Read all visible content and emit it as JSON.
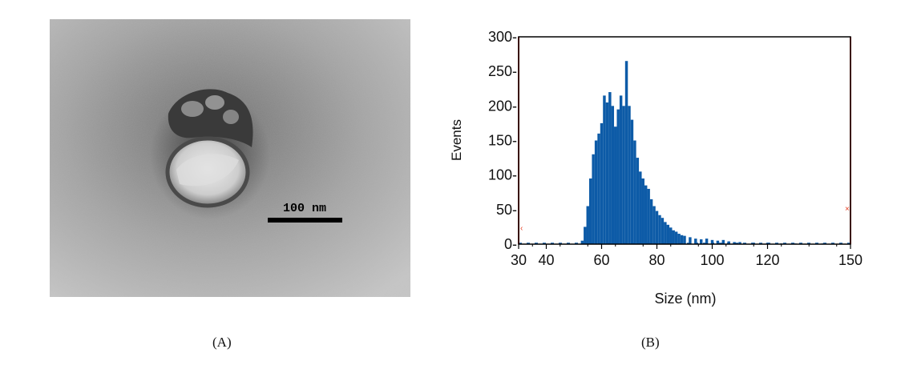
{
  "panel_a": {
    "scale_bar_label": "100 nm",
    "caption": "(A)"
  },
  "panel_b": {
    "caption": "(B)"
  },
  "colors": {
    "bars": "#0d5ba7",
    "gate_lines": "#e53b1e",
    "axes": "#000000"
  },
  "chart_data": {
    "type": "bar",
    "title": "",
    "xlabel": "Size (nm)",
    "ylabel": "Events",
    "xlim": [
      30,
      150
    ],
    "ylim": [
      0,
      300
    ],
    "x_ticks": [
      30,
      40,
      60,
      80,
      100,
      120,
      150
    ],
    "y_ticks": [
      0,
      50,
      100,
      150,
      200,
      250,
      300
    ],
    "x_tick_labels": [
      "30",
      "40",
      "60",
      "80",
      "100",
      "120",
      "150"
    ],
    "y_tick_labels": [
      "0-",
      "50-",
      "100-",
      "150-",
      "200-",
      "250-",
      "300-"
    ],
    "grid": false,
    "gate_markers": [
      30,
      150
    ],
    "series": [
      {
        "x": [
          53,
          54,
          55,
          56,
          57,
          58,
          59,
          60,
          61,
          62,
          63,
          64,
          65,
          66,
          67,
          68,
          69,
          70,
          71,
          72,
          73,
          74,
          75,
          76,
          77,
          78,
          79,
          80,
          81,
          82,
          83,
          84,
          85,
          86,
          87,
          88,
          89,
          90,
          92,
          94,
          96,
          98,
          100,
          102,
          104,
          106,
          108,
          110,
          115,
          120,
          125,
          130,
          140
        ],
        "values": [
          5,
          25,
          55,
          95,
          130,
          150,
          160,
          175,
          215,
          205,
          220,
          200,
          170,
          195,
          215,
          200,
          265,
          200,
          180,
          150,
          125,
          105,
          95,
          85,
          80,
          65,
          55,
          48,
          42,
          38,
          32,
          28,
          24,
          20,
          18,
          15,
          13,
          12,
          10,
          8,
          7,
          8,
          6,
          5,
          6,
          4,
          3,
          3,
          2,
          2,
          1,
          1,
          1
        ]
      }
    ]
  }
}
